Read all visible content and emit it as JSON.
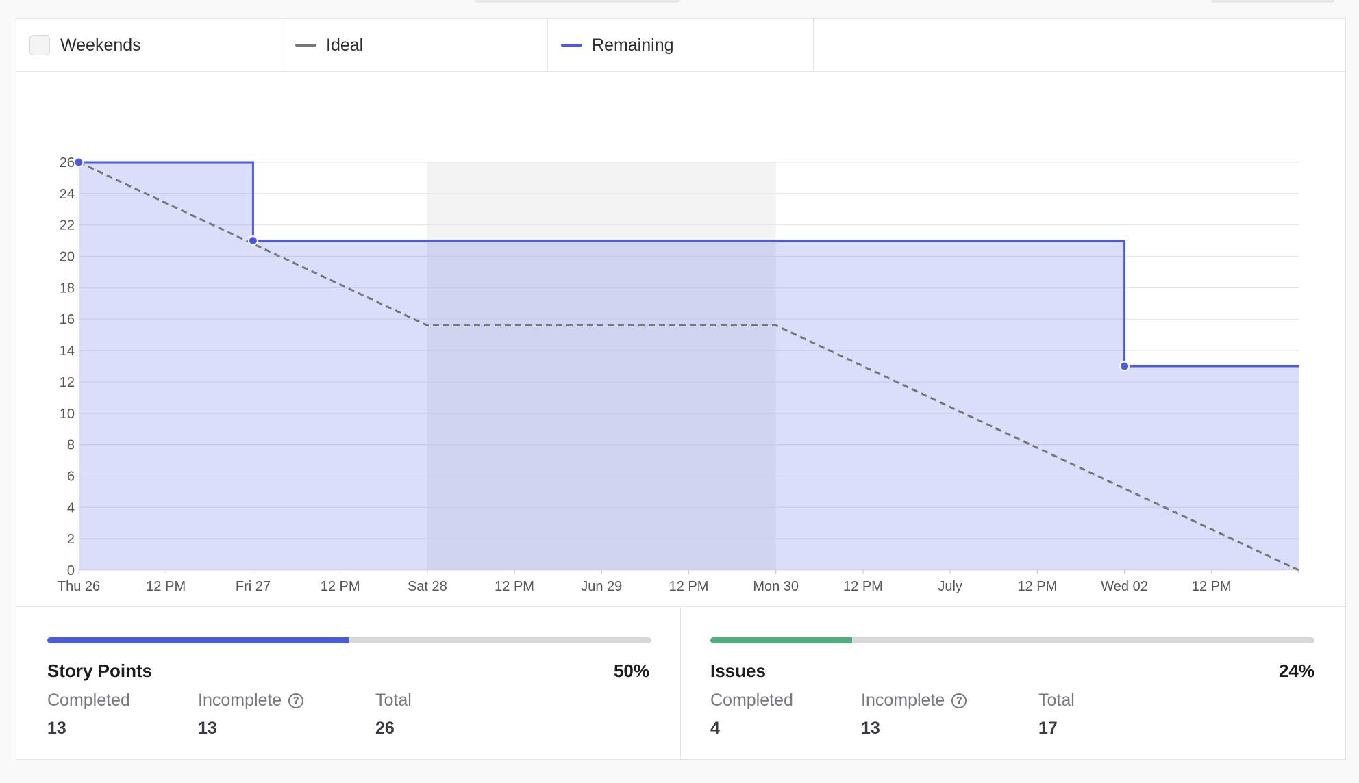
{
  "legend": {
    "items": [
      {
        "label": "Weekends",
        "swatch": "box",
        "color": "#f4f4f5"
      },
      {
        "label": "Ideal",
        "swatch": "line",
        "color": "#777777"
      },
      {
        "label": "Remaining",
        "swatch": "line",
        "color": "#4a5ce6"
      }
    ]
  },
  "chart_data": {
    "type": "line",
    "title": "",
    "xlabel": "",
    "ylabel": "",
    "x_ticks": [
      "Thu 26",
      "12 PM",
      "Fri 27",
      "12 PM",
      "Sat 28",
      "12 PM",
      "Jun 29",
      "12 PM",
      "Mon 30",
      "12 PM",
      "July",
      "12 PM",
      "Wed 02",
      "12 PM"
    ],
    "y_ticks": [
      0,
      2,
      4,
      6,
      8,
      10,
      12,
      14,
      16,
      18,
      20,
      22,
      24,
      26
    ],
    "xlim": [
      "Thu 26",
      "Thu 03"
    ],
    "ylim": [
      0,
      26
    ],
    "grid": true,
    "weekend_ranges": [
      [
        "Sat 28",
        "Mon 30"
      ]
    ],
    "series": [
      {
        "name": "Ideal",
        "style": "dashed",
        "color": "#777777",
        "x": [
          "Thu 26",
          "Sat 28",
          "Mon 30",
          "Thu 03"
        ],
        "y": [
          26,
          15.6,
          15.6,
          0
        ]
      },
      {
        "name": "Remaining",
        "style": "step",
        "filled": true,
        "color": "#4a5ce6",
        "x": [
          "Thu 26",
          "Fri 27",
          "Wed 02",
          "Thu 03"
        ],
        "y": [
          26,
          21,
          13,
          13
        ],
        "markers": [
          {
            "x": "Thu 26",
            "y": 26
          },
          {
            "x": "Fri 27",
            "y": 21
          },
          {
            "x": "Wed 02",
            "y": 13
          }
        ]
      }
    ]
  },
  "stats": [
    {
      "title": "Story Points",
      "percent": "50%",
      "progress": 0.5,
      "color": "#4a5ce6",
      "completed_label": "Completed",
      "completed": "13",
      "incomplete_label": "Incomplete",
      "incomplete": "13",
      "total_label": "Total",
      "total": "26"
    },
    {
      "title": "Issues",
      "percent": "24%",
      "progress": 0.235,
      "color": "#4caf7d",
      "completed_label": "Completed",
      "completed": "4",
      "incomplete_label": "Incomplete",
      "incomplete": "13",
      "total_label": "Total",
      "total": "17"
    }
  ],
  "help_glyph": "?"
}
